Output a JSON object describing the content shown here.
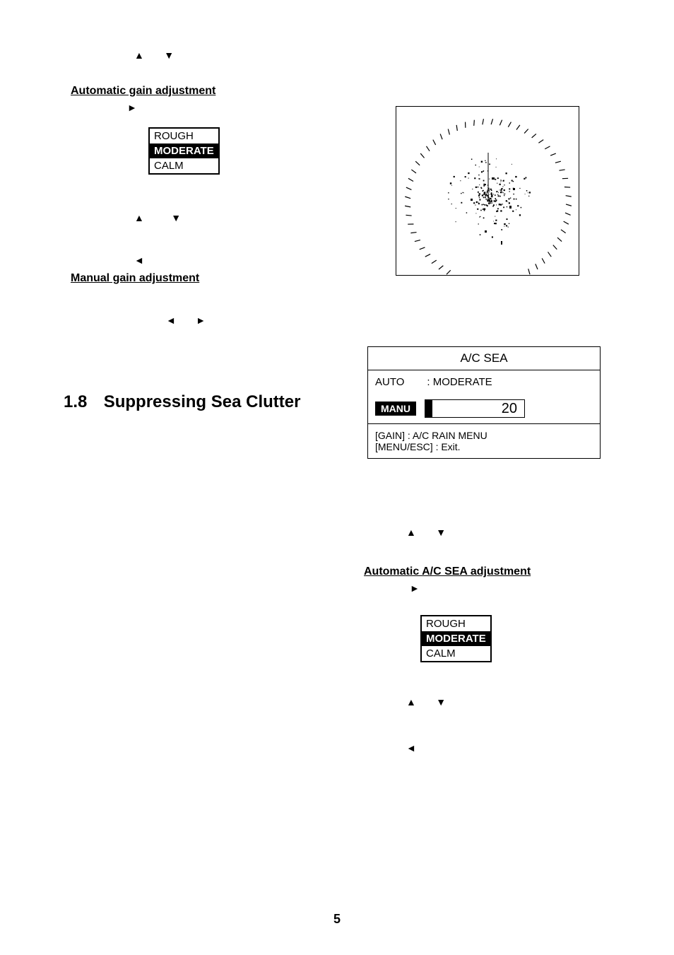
{
  "page_number": "5",
  "left": {
    "arrows_top": {
      "up": "▲",
      "down": "▼"
    },
    "heading_auto_gain": "Automatic gain adjustment",
    "arrow_right": "►",
    "options": {
      "rough": "ROUGH",
      "moderate": "MODERATE",
      "calm": "CALM"
    },
    "arrows_mid": {
      "up": "▲",
      "down": "▼"
    },
    "arrow_left": "◄",
    "heading_manual_gain": "Manual gain adjustment",
    "arrows_manual": {
      "left": "◄",
      "right": "►"
    },
    "section_number": "1.8",
    "section_title": "Suppressing Sea Clutter"
  },
  "right": {
    "menu": {
      "title": "A/C SEA",
      "auto_label": "AUTO",
      "auto_value": ": MODERATE",
      "manu_label": "MANU",
      "manu_value": "20",
      "foot1": "[GAIN]  :  A/C RAIN MENU",
      "foot2": "[MENU/ESC]   :  Exit."
    },
    "arrows_mid": {
      "up": "▲",
      "down": "▼"
    },
    "heading_auto_acsea": "Automatic A/C SEA adjustment",
    "arrow_right": "►",
    "options": {
      "rough": "ROUGH",
      "moderate": "MODERATE",
      "calm": "CALM"
    },
    "arrows_bottom": {
      "up": "▲",
      "down": "▼"
    },
    "arrow_left": "◄"
  },
  "radar": {
    "tick_count": 48,
    "speckle_count": 220
  },
  "colors": {
    "fg": "#000000",
    "bg": "#ffffff"
  }
}
